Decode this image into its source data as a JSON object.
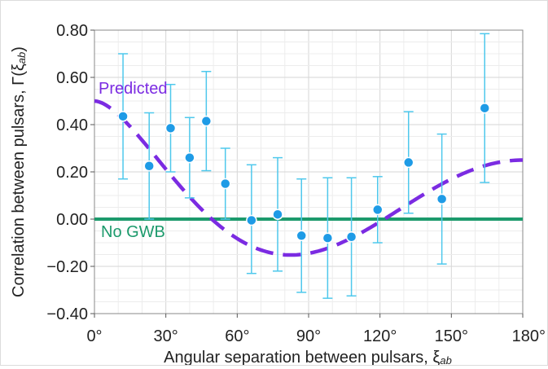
{
  "chart_data": {
    "type": "scatter",
    "xlabel_prefix": "Angular separation between pulsars, ξ",
    "xlabel_sub": "ab",
    "ylabel_prefix": "Correlation between pulsars, Γ(ξ",
    "ylabel_sub": "ab",
    "ylabel_suffix": ")",
    "xlim": [
      0,
      180
    ],
    "ylim": [
      -0.4,
      0.8
    ],
    "xticks": [
      0,
      30,
      60,
      90,
      120,
      150,
      180
    ],
    "xtick_labels": [
      "0°",
      "30°",
      "60°",
      "90°",
      "120°",
      "150°",
      "180°"
    ],
    "yticks": [
      -0.4,
      -0.2,
      0.0,
      0.2,
      0.4,
      0.6,
      0.8
    ],
    "ytick_labels": [
      "−0.40",
      "−0.20",
      "0.00",
      "0.20",
      "0.40",
      "0.60",
      "0.80"
    ],
    "grid": true,
    "series": [
      {
        "name": "Predicted",
        "kind": "dashed-line",
        "color": "#7b2be2",
        "curve": "hellings-downs"
      },
      {
        "name": "No GWB",
        "kind": "line",
        "color": "#1c9a6c",
        "y": 0.0
      },
      {
        "kind": "points-with-error-bars",
        "color": "#1e9be6",
        "errorbar_color": "#4ec8ec",
        "points": [
          {
            "x": 12,
            "y": 0.435,
            "lo": 0.17,
            "hi": 0.7
          },
          {
            "x": 23,
            "y": 0.225,
            "lo": 0.0,
            "hi": 0.45
          },
          {
            "x": 32,
            "y": 0.385,
            "lo": 0.2,
            "hi": 0.57
          },
          {
            "x": 40,
            "y": 0.26,
            "lo": 0.09,
            "hi": 0.43
          },
          {
            "x": 47,
            "y": 0.415,
            "lo": 0.205,
            "hi": 0.625
          },
          {
            "x": 55,
            "y": 0.15,
            "lo": 0.0,
            "hi": 0.3
          },
          {
            "x": 66,
            "y": -0.005,
            "lo": -0.23,
            "hi": 0.23
          },
          {
            "x": 77,
            "y": 0.02,
            "lo": -0.22,
            "hi": 0.26
          },
          {
            "x": 87,
            "y": -0.07,
            "lo": -0.31,
            "hi": 0.17
          },
          {
            "x": 98,
            "y": -0.08,
            "lo": -0.335,
            "hi": 0.175
          },
          {
            "x": 108,
            "y": -0.075,
            "lo": -0.325,
            "hi": 0.175
          },
          {
            "x": 119,
            "y": 0.04,
            "lo": -0.1,
            "hi": 0.18
          },
          {
            "x": 132,
            "y": 0.24,
            "lo": 0.025,
            "hi": 0.455
          },
          {
            "x": 146,
            "y": 0.085,
            "lo": -0.19,
            "hi": 0.36
          },
          {
            "x": 164,
            "y": 0.47,
            "lo": 0.155,
            "hi": 0.785
          }
        ]
      }
    ]
  }
}
